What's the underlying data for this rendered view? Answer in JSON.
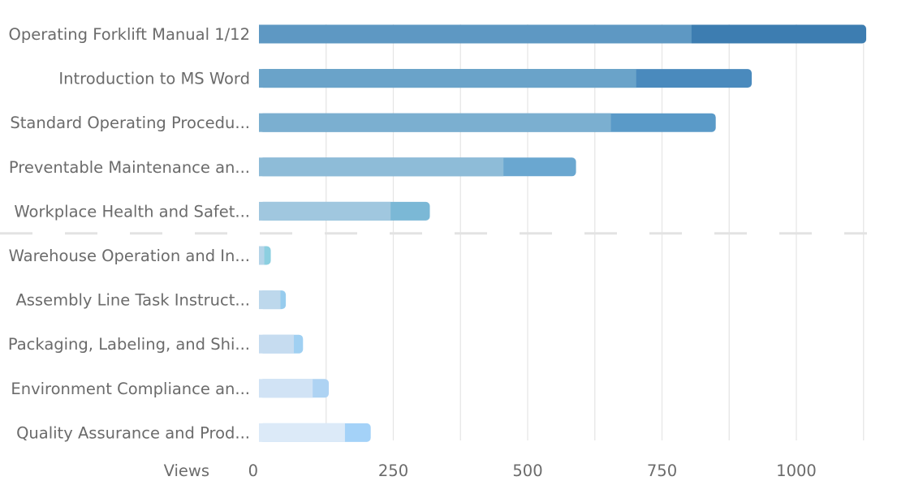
{
  "chart_data": {
    "type": "bar",
    "orientation": "horizontal",
    "stacked": true,
    "xlabel": "Views",
    "xlim": [
      0,
      1090
    ],
    "xticks": [
      0,
      250,
      500,
      750,
      1000
    ],
    "grid": true,
    "categories": [
      "Operating Forklift Manual 1/12",
      "Introduction to MS Word",
      "Standard Operating Procedu...",
      "Preventable Maintenance an...",
      "Workplace Health and Safet...",
      "Warehouse Operation and In...",
      "Assembly Line Task Instruct...",
      "Packaging, Labeling, and Shi...",
      "Environment Compliance an...",
      "Quality Assurance and Prod..."
    ],
    "series": [
      {
        "values": [
          805,
          702,
          655,
          455,
          245,
          10,
          40,
          65,
          100,
          160
        ]
      },
      {
        "values": [
          325,
          215,
          195,
          135,
          73,
          12,
          10,
          17,
          30,
          48
        ]
      }
    ],
    "colors": {
      "first_segment": [
        "#5e98c3",
        "#6aa3c9",
        "#7bafd0",
        "#8ebcd8",
        "#a0c7df",
        "#b4d4e8",
        "#bdd8ec",
        "#c6dcf0",
        "#d1e3f5",
        "#dceaf8"
      ],
      "second_segment": [
        "#3d7db1",
        "#4a8abd",
        "#5a9ac8",
        "#6aa7d0",
        "#7bb8d6",
        "#8ccfe0",
        "#97ccee",
        "#a0d0f2",
        "#aed3f3",
        "#a4d2f8"
      ]
    },
    "divider_after_index": 4
  }
}
